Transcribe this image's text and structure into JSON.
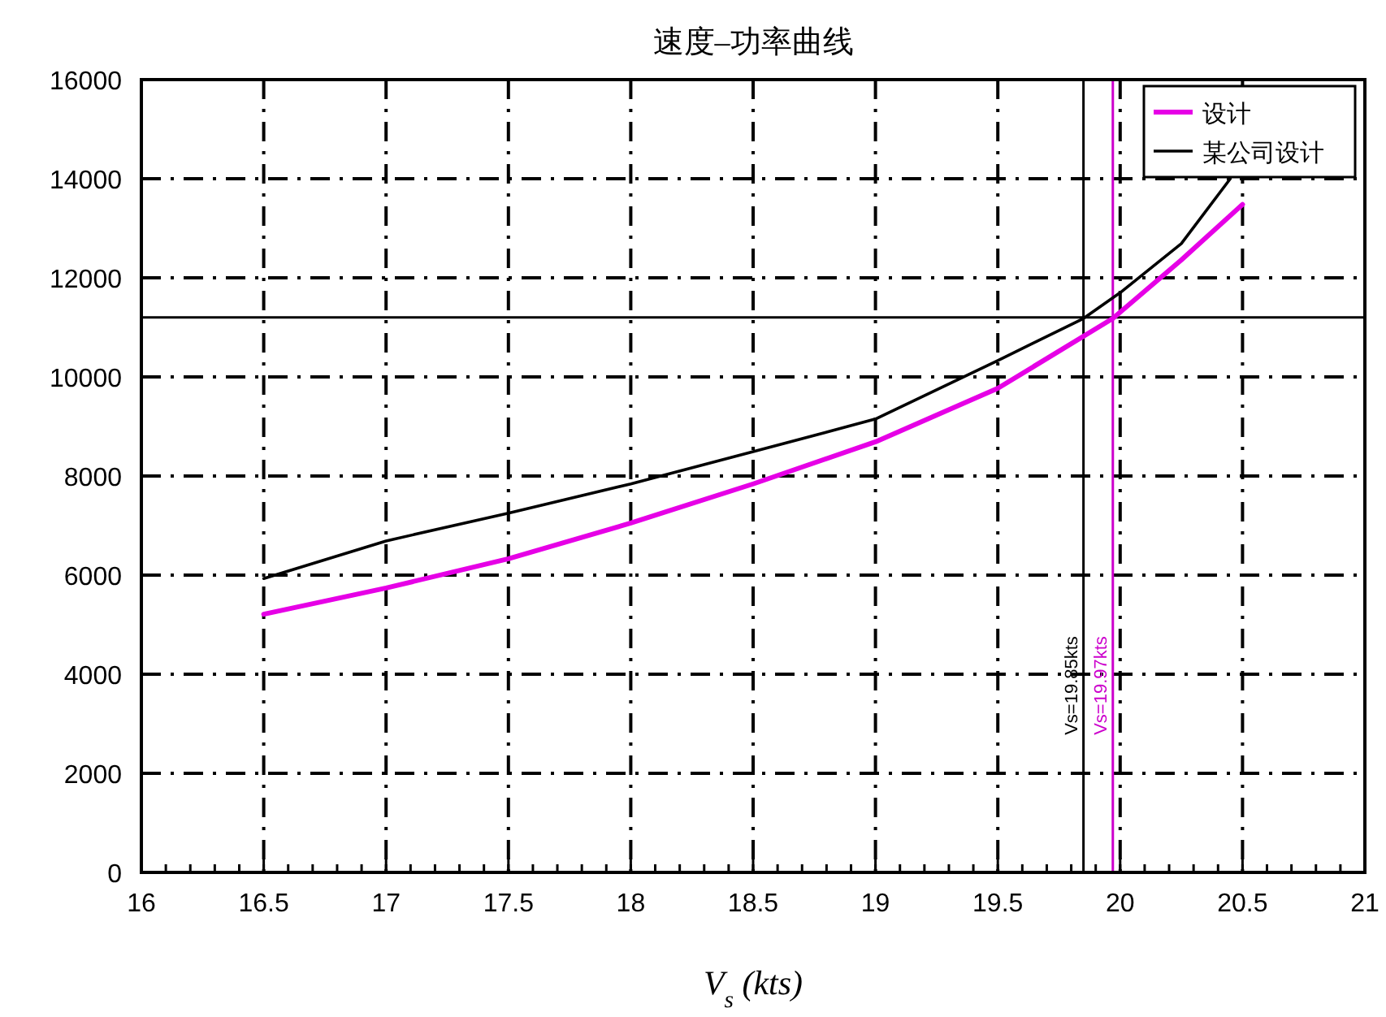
{
  "chart_data": {
    "type": "line",
    "title": "速度–功率曲线",
    "xlabel": "V$_{s}$ (kts)",
    "xlim": [
      16,
      21
    ],
    "xticks": [
      16,
      16.5,
      17,
      17.5,
      18,
      18.5,
      19,
      19.5,
      20,
      20.5,
      21
    ],
    "ylim": [
      0,
      16000
    ],
    "yticks": [
      0,
      2000,
      4000,
      6000,
      8000,
      10000,
      12000,
      14000,
      16000
    ],
    "grid": true,
    "legend": "top right",
    "marker": "none",
    "line_style": "solid",
    "series": [
      {
        "name": "设计",
        "color": "#e600e6",
        "x": [
          16.5,
          17,
          17.5,
          18,
          18.5,
          19,
          19.5,
          19.97,
          20.25,
          20.5
        ],
        "values": [
          5210,
          5740,
          6330,
          7050,
          7840,
          8690,
          9770,
          11180,
          12360,
          13480
        ]
      },
      {
        "name": "某公司设计",
        "color": "#000000",
        "x": [
          16.5,
          17,
          17.5,
          18,
          18.5,
          19,
          19.5,
          19.85,
          20,
          20.25,
          20.45
        ],
        "values": [
          5930,
          6690,
          7250,
          7840,
          8490,
          9150,
          10330,
          11180,
          11700,
          12690,
          14000
        ]
      }
    ],
    "ref_lines": [
      {
        "axis": "x",
        "value": 19.85,
        "label": "Vs=19.85kts",
        "color": "#000000"
      },
      {
        "axis": "x",
        "value": 19.97,
        "label": "Vs=19.97kts",
        "color": "#cc00cc"
      },
      {
        "axis": "y",
        "value": 11200,
        "color": "#000000"
      }
    ]
  }
}
